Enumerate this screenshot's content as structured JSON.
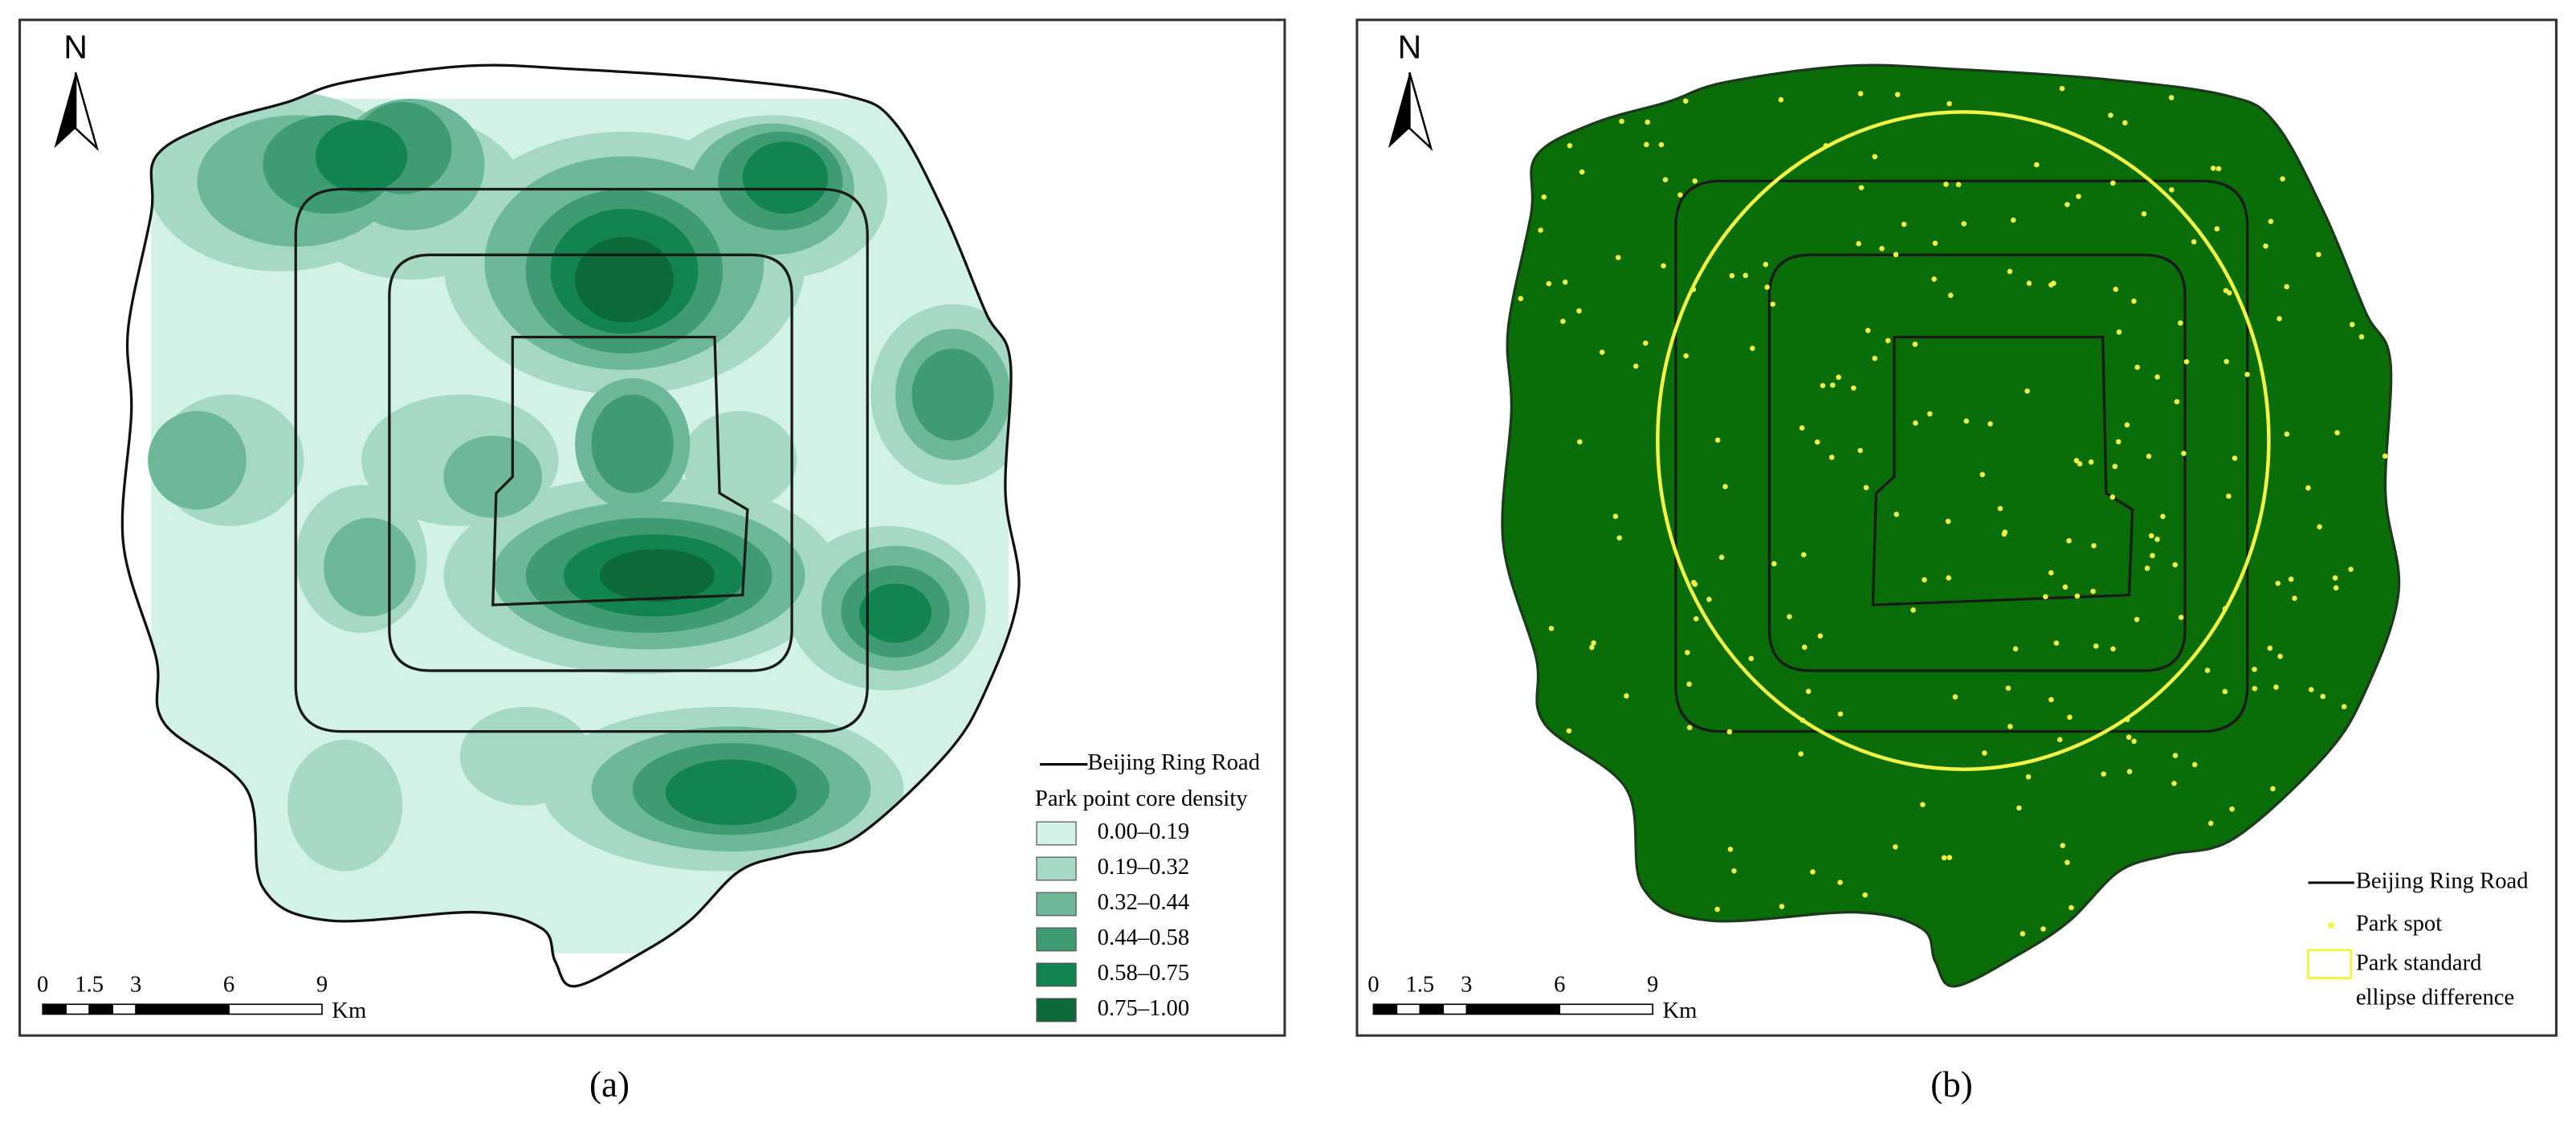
{
  "panel_a": {
    "north": "N",
    "legend": {
      "road": "Beijing Ring Road",
      "title": "Park point core density",
      "classes": [
        {
          "label": "0.00–0.19",
          "color": "#d2f1e7"
        },
        {
          "label": "0.19–0.32",
          "color": "#a6d9c3"
        },
        {
          "label": "0.32–0.44",
          "color": "#6cb898"
        },
        {
          "label": "0.44–0.58",
          "color": "#3f9c72"
        },
        {
          "label": "0.58–0.75",
          "color": "#12844f"
        },
        {
          "label": "0.75–1.00",
          "color": "#0b6a38"
        }
      ]
    },
    "scale_bar": {
      "ticks": [
        0,
        1.5,
        3,
        6,
        9
      ],
      "unit": "Km"
    },
    "caption": "(a)"
  },
  "panel_b": {
    "north": "N",
    "fill_color": "#0a6e08",
    "spot_color": "#f2f542",
    "legend": {
      "road": "Beijing Ring Road",
      "spot": "Park spot",
      "ellipse": [
        "Park standard",
        "ellipse difference"
      ]
    },
    "scale_bar": {
      "ticks": [
        0,
        1.5,
        3,
        6,
        9
      ],
      "unit": "Km"
    },
    "caption": "(b)"
  }
}
